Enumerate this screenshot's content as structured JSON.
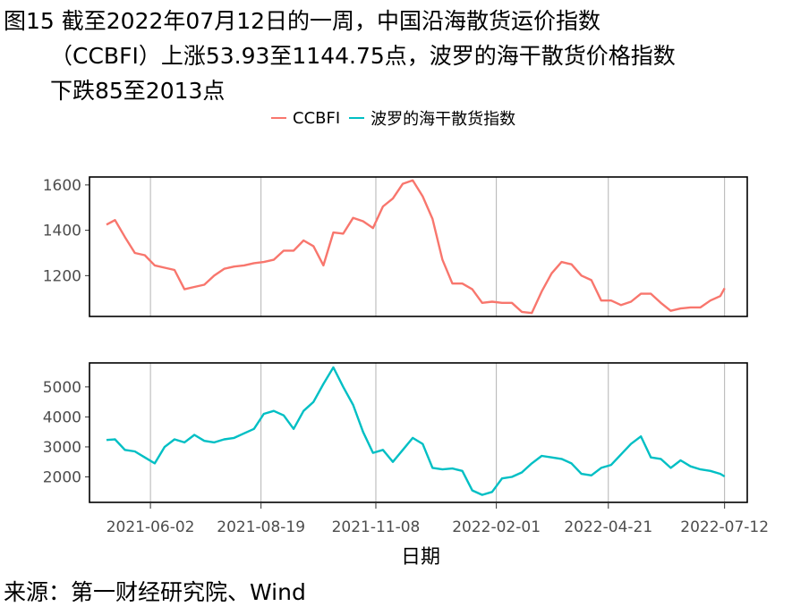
{
  "figure": {
    "title_line1": "图15  截至2022年07月12日的一周，中国沿海散货运价指数",
    "title_line2": "（CCBFI）上涨53.93至1144.75点，波罗的海干散货价格指数",
    "title_line3": "下跌85至2013点",
    "source": "来源：第一财经研究院、Wind"
  },
  "colors": {
    "ccbfi": "#F8766D",
    "bdi": "#00BFC4",
    "grid": "#b3b3b3",
    "frame": "#000000"
  },
  "chart_data": {
    "type": "line",
    "xlabel": "日期",
    "x_ticks": [
      "2021-06-02",
      "2021-08-19",
      "2021-11-08",
      "2022-02-01",
      "2022-04-21",
      "2022-07-12"
    ],
    "x_range": [
      "2021-04-20",
      "2022-07-28"
    ],
    "legend_position": "top",
    "panels": [
      {
        "name": "CCBFI",
        "legend_label": "CCBFI",
        "yticks": [
          1200,
          1400,
          1600
        ],
        "ylim": [
          1020,
          1635
        ],
        "x": [
          "2021-05-02",
          "2021-05-08",
          "2021-05-15",
          "2021-05-22",
          "2021-05-29",
          "2021-06-05",
          "2021-06-12",
          "2021-06-19",
          "2021-06-26",
          "2021-07-03",
          "2021-07-10",
          "2021-07-17",
          "2021-07-24",
          "2021-07-31",
          "2021-08-07",
          "2021-08-14",
          "2021-08-21",
          "2021-08-28",
          "2021-09-04",
          "2021-09-11",
          "2021-09-18",
          "2021-09-25",
          "2021-10-02",
          "2021-10-09",
          "2021-10-16",
          "2021-10-23",
          "2021-10-30",
          "2021-11-06",
          "2021-11-13",
          "2021-11-20",
          "2021-11-27",
          "2021-12-04",
          "2021-12-11",
          "2021-12-18",
          "2021-12-25",
          "2022-01-01",
          "2022-01-08",
          "2022-01-15",
          "2022-01-22",
          "2022-01-29",
          "2022-02-05",
          "2022-02-12",
          "2022-02-19",
          "2022-02-26",
          "2022-03-05",
          "2022-03-12",
          "2022-03-19",
          "2022-03-26",
          "2022-04-02",
          "2022-04-09",
          "2022-04-16",
          "2022-04-23",
          "2022-04-30",
          "2022-05-07",
          "2022-05-14",
          "2022-05-21",
          "2022-05-28",
          "2022-06-04",
          "2022-06-11",
          "2022-06-18",
          "2022-06-25",
          "2022-07-02",
          "2022-07-09",
          "2022-07-12"
        ],
        "values": [
          1425,
          1445,
          1370,
          1300,
          1290,
          1245,
          1235,
          1225,
          1140,
          1150,
          1160,
          1200,
          1230,
          1240,
          1245,
          1255,
          1260,
          1270,
          1310,
          1310,
          1355,
          1330,
          1245,
          1390,
          1385,
          1455,
          1440,
          1410,
          1505,
          1540,
          1605,
          1620,
          1550,
          1450,
          1270,
          1165,
          1165,
          1140,
          1080,
          1085,
          1080,
          1080,
          1040,
          1035,
          1130,
          1210,
          1260,
          1250,
          1200,
          1180,
          1090,
          1090,
          1070,
          1085,
          1120,
          1120,
          1080,
          1045,
          1055,
          1060,
          1060,
          1090,
          1110,
          1144.75
        ]
      },
      {
        "name": "BDI",
        "legend_label": "波罗的海干散货指数",
        "yticks": [
          2000,
          3000,
          4000,
          5000
        ],
        "ylim": [
          1150,
          5800
        ],
        "x": [
          "2021-05-02",
          "2021-05-08",
          "2021-05-15",
          "2021-05-22",
          "2021-05-29",
          "2021-06-05",
          "2021-06-12",
          "2021-06-19",
          "2021-06-26",
          "2021-07-03",
          "2021-07-10",
          "2021-07-17",
          "2021-07-24",
          "2021-07-31",
          "2021-08-07",
          "2021-08-14",
          "2021-08-21",
          "2021-08-28",
          "2021-09-04",
          "2021-09-11",
          "2021-09-18",
          "2021-09-25",
          "2021-10-02",
          "2021-10-09",
          "2021-10-16",
          "2021-10-23",
          "2021-10-30",
          "2021-11-06",
          "2021-11-13",
          "2021-11-20",
          "2021-11-27",
          "2021-12-04",
          "2021-12-11",
          "2021-12-18",
          "2021-12-25",
          "2022-01-01",
          "2022-01-08",
          "2022-01-15",
          "2022-01-22",
          "2022-01-29",
          "2022-02-05",
          "2022-02-12",
          "2022-02-19",
          "2022-02-26",
          "2022-03-05",
          "2022-03-12",
          "2022-03-19",
          "2022-03-26",
          "2022-04-02",
          "2022-04-09",
          "2022-04-16",
          "2022-04-23",
          "2022-04-30",
          "2022-05-07",
          "2022-05-14",
          "2022-05-21",
          "2022-05-28",
          "2022-06-04",
          "2022-06-11",
          "2022-06-18",
          "2022-06-25",
          "2022-07-02",
          "2022-07-09",
          "2022-07-12"
        ],
        "values": [
          3230,
          3250,
          2900,
          2850,
          2650,
          2450,
          3000,
          3250,
          3150,
          3400,
          3200,
          3150,
          3250,
          3300,
          3450,
          3600,
          4100,
          4200,
          4050,
          3600,
          4200,
          4500,
          5100,
          5650,
          5000,
          4400,
          3500,
          2800,
          2900,
          2500,
          2900,
          3300,
          3100,
          2300,
          2250,
          2280,
          2200,
          1550,
          1400,
          1500,
          1950,
          2000,
          2150,
          2450,
          2700,
          2650,
          2600,
          2450,
          2100,
          2050,
          2300,
          2400,
          2750,
          3100,
          3350,
          2650,
          2600,
          2300,
          2550,
          2350,
          2250,
          2200,
          2100,
          2013
        ]
      }
    ]
  }
}
